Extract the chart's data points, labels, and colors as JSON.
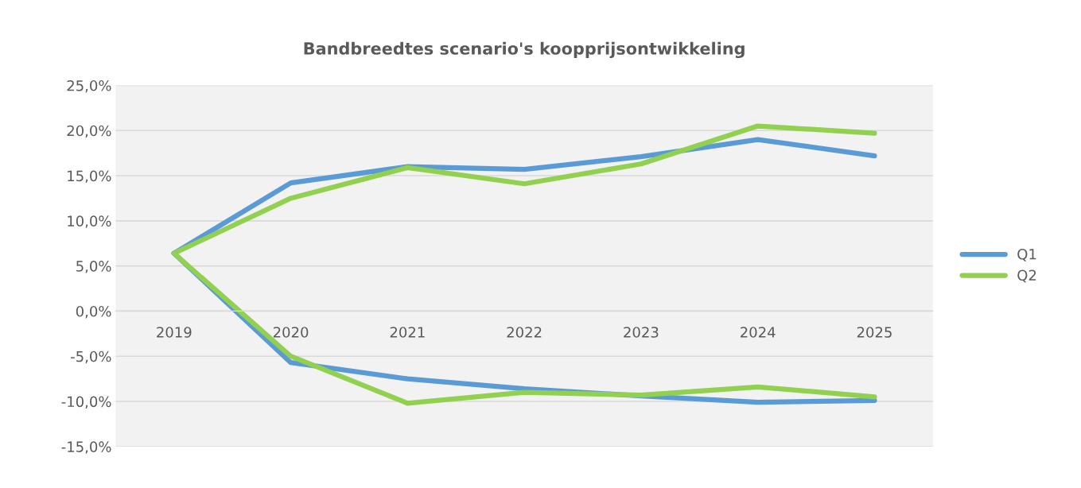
{
  "chart_data": {
    "type": "line",
    "title": "Bandbreedtes scenario's koopprijsontwikkeling",
    "categories": [
      "2019",
      "2020",
      "2021",
      "2022",
      "2023",
      "2024",
      "2025"
    ],
    "series": [
      {
        "name": "Q1",
        "color": "#5b9bd5",
        "values": [
          6.4,
          14.2,
          16.0,
          15.7,
          17.1,
          19.0,
          17.2
        ]
      },
      {
        "name": "Q2",
        "color": "#92d050",
        "values": [
          6.4,
          12.5,
          15.9,
          14.1,
          16.3,
          20.5,
          19.7
        ]
      },
      {
        "color": "#5b9bd5",
        "values": [
          6.4,
          -5.7,
          -7.5,
          -8.6,
          -9.4,
          -10.1,
          -9.9
        ]
      },
      {
        "color": "#92d050",
        "values": [
          6.4,
          -5.0,
          -10.2,
          -9.0,
          -9.3,
          -8.4,
          -9.5
        ]
      }
    ],
    "ylim": [
      -15,
      25
    ],
    "yticks": [
      {
        "value": -15,
        "label": "-15,0%"
      },
      {
        "value": -10,
        "label": "-10,0%"
      },
      {
        "value": -5,
        "label": "-5,0%"
      },
      {
        "value": 0,
        "label": "0,0%"
      },
      {
        "value": 5,
        "label": "5,0%"
      },
      {
        "value": 10,
        "label": "10,0%"
      },
      {
        "value": 15,
        "label": "15,0%"
      },
      {
        "value": 20,
        "label": "20,0%"
      },
      {
        "value": 25,
        "label": "25,0%"
      }
    ],
    "grid": "y",
    "legend": "right",
    "marker": "none",
    "line_style": "solid"
  }
}
